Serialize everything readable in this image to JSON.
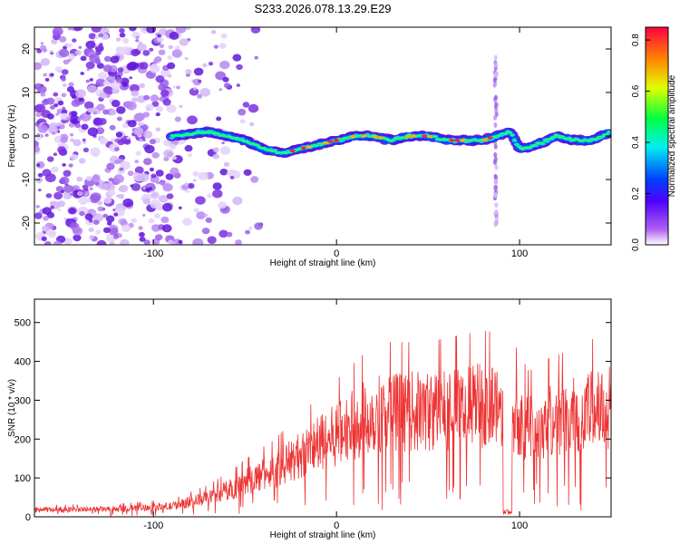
{
  "title": "S233.2026.078.13.29.E29",
  "chart_data": [
    {
      "type": "heatmap",
      "name": "spectrogram",
      "xlabel": "Height of straight line (km)",
      "ylabel": "Frequency (Hz)",
      "xlim": [
        -165,
        150
      ],
      "ylim": [
        -25,
        25
      ],
      "xticks": [
        -100,
        0,
        100
      ],
      "yticks": [
        -20,
        -10,
        0,
        10,
        20
      ],
      "colorbar": {
        "label": "Normalized spectral amplitude",
        "range": [
          0,
          0.85
        ],
        "ticks": [
          0.0,
          0.2,
          0.4,
          0.6,
          0.8
        ]
      },
      "ridge": {
        "description": "Narrow high-amplitude band near 0 Hz from about -90 km to 150 km; broadband scatter below -60 km; vertical streak near 87 km",
        "x": [
          -90,
          -70,
          -50,
          -40,
          -30,
          -20,
          -10,
          0,
          10,
          20,
          30,
          40,
          50,
          60,
          70,
          80,
          87,
          95,
          100,
          110,
          120,
          130,
          140,
          150
        ],
        "y": [
          0,
          1,
          -1,
          -3,
          -4,
          -3,
          -2,
          -1,
          0,
          0,
          -1,
          0,
          0,
          -1,
          -1,
          -1,
          0,
          1,
          -3,
          -2,
          0,
          -1,
          -1,
          1
        ]
      }
    },
    {
      "type": "line",
      "name": "snr",
      "xlabel": "Height of straight line (km)",
      "ylabel": "SNR (10 * v/v)",
      "xlim": [
        -165,
        150
      ],
      "ylim": [
        0,
        560
      ],
      "xticks": [
        -100,
        0,
        100
      ],
      "yticks": [
        0,
        100,
        200,
        300,
        400,
        500
      ],
      "color": "#ee3333",
      "envelope": {
        "x": [
          -165,
          -120,
          -90,
          -70,
          -55,
          -45,
          -35,
          -25,
          -15,
          -5,
          5,
          15,
          25,
          35,
          50,
          65,
          80,
          95,
          105,
          115,
          130,
          140,
          150
        ],
        "y": [
          20,
          22,
          30,
          55,
          85,
          110,
          130,
          160,
          190,
          220,
          250,
          280,
          300,
          300,
          300,
          310,
          320,
          310,
          250,
          270,
          290,
          305,
          320
        ]
      }
    }
  ]
}
